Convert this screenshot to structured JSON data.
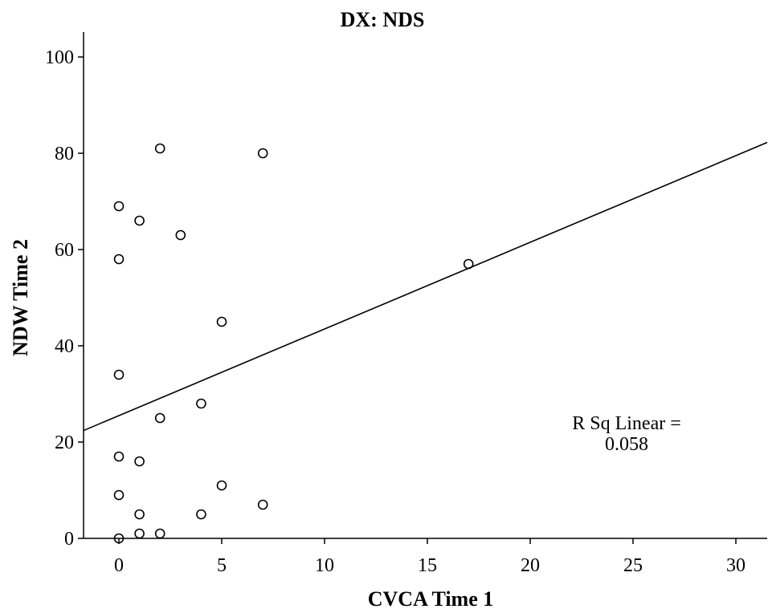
{
  "chart_data": {
    "type": "scatter",
    "title": "DX: NDS",
    "xlabel": "CVCA Time 1",
    "ylabel": "NDW Time 2",
    "xlim": [
      -2,
      32
    ],
    "ylim": [
      0,
      105
    ],
    "xticks": [
      0,
      5,
      10,
      15,
      20,
      25,
      30
    ],
    "yticks": [
      0,
      20,
      40,
      60,
      80,
      100
    ],
    "points": [
      {
        "x": 0,
        "y": 69
      },
      {
        "x": 0,
        "y": 58
      },
      {
        "x": 0,
        "y": 34
      },
      {
        "x": 0,
        "y": 17
      },
      {
        "x": 0,
        "y": 9
      },
      {
        "x": 0,
        "y": 0
      },
      {
        "x": 1,
        "y": 66
      },
      {
        "x": 1,
        "y": 16
      },
      {
        "x": 1,
        "y": 5
      },
      {
        "x": 1,
        "y": 1
      },
      {
        "x": 2,
        "y": 81
      },
      {
        "x": 2,
        "y": 25
      },
      {
        "x": 2,
        "y": 1
      },
      {
        "x": 3,
        "y": 63
      },
      {
        "x": 4,
        "y": 28
      },
      {
        "x": 4,
        "y": 5
      },
      {
        "x": 5,
        "y": 45
      },
      {
        "x": 5,
        "y": 11
      },
      {
        "x": 7,
        "y": 80
      },
      {
        "x": 7,
        "y": 7
      },
      {
        "x": 17,
        "y": 57
      }
    ],
    "fit_line": {
      "intercept": 25.5,
      "slope": 1.8
    },
    "annotation": {
      "line1": "R Sq Linear =",
      "line2": "0.058"
    },
    "grid": false
  }
}
